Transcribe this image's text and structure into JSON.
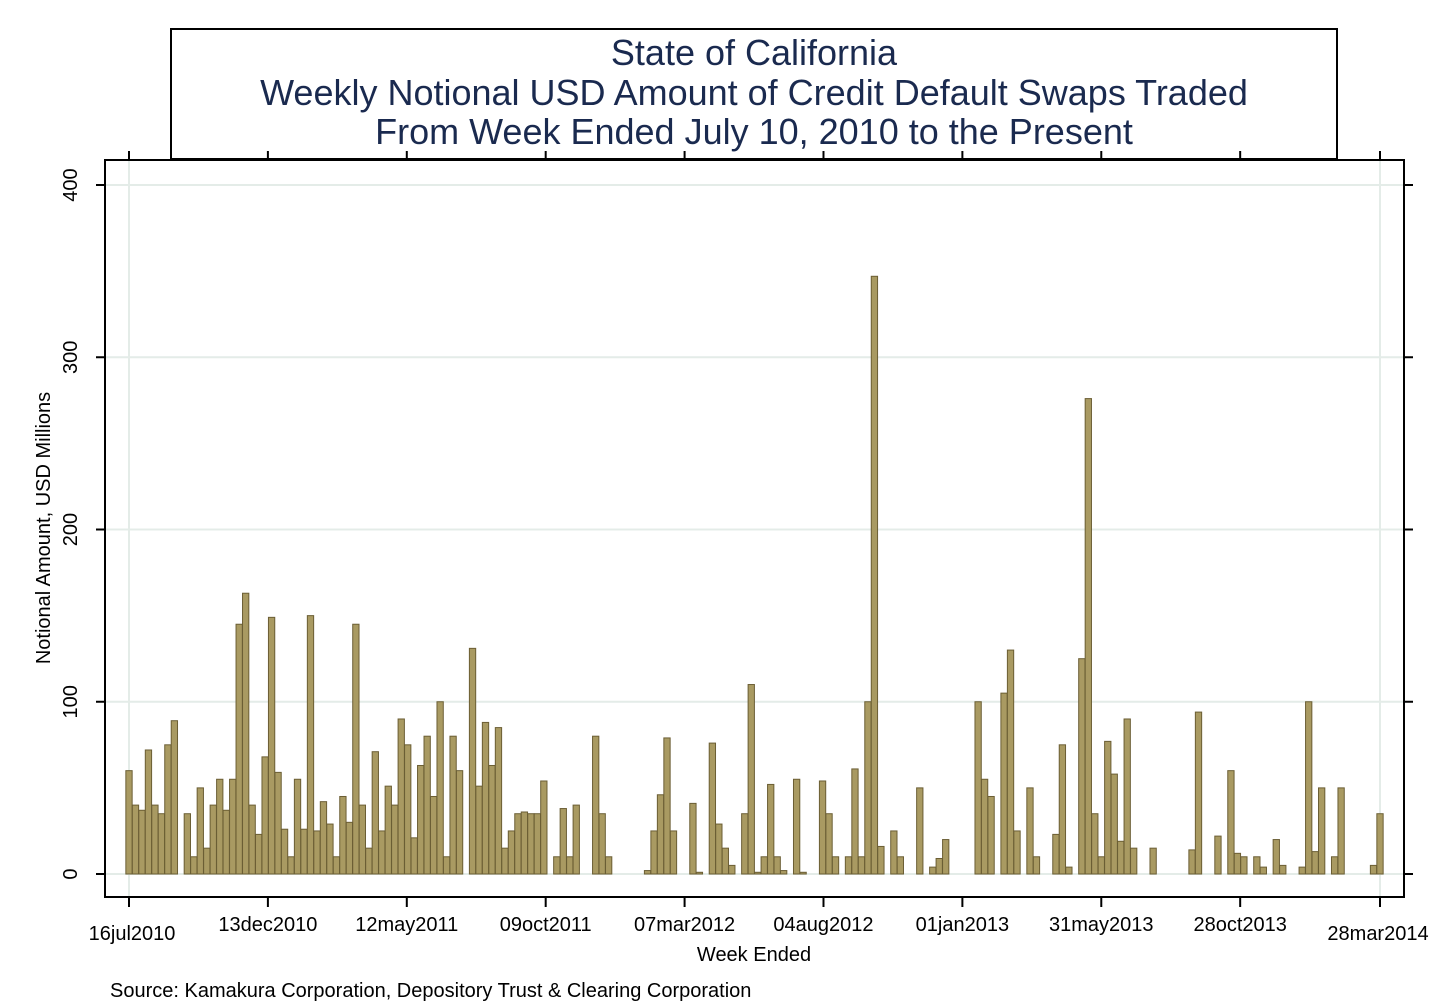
{
  "chart_data": {
    "type": "bar",
    "title_lines": [
      "State of California",
      "Weekly Notional USD Amount of Credit Default Swaps Traded",
      "From Week Ended July 10, 2010 to the Present"
    ],
    "xlabel": "Week Ended",
    "ylabel": "Notional Amount, USD Millions",
    "source": "Source: Kamakura Corporation, Depository Trust & Clearing Corporation",
    "ylim": [
      0,
      400
    ],
    "yticks": [
      0,
      100,
      200,
      300,
      400
    ],
    "xlim": [
      "2010-07-16",
      "2014-03-28"
    ],
    "xticks": [
      {
        "date": "2010-07-16",
        "label": "16jul2010"
      },
      {
        "date": "2010-12-13",
        "label": "13dec2010"
      },
      {
        "date": "2011-05-12",
        "label": "12may2011"
      },
      {
        "date": "2011-10-09",
        "label": "09oct2011"
      },
      {
        "date": "2012-03-07",
        "label": "07mar2012"
      },
      {
        "date": "2012-08-04",
        "label": "04aug2012"
      },
      {
        "date": "2013-01-01",
        "label": "01jan2013"
      },
      {
        "date": "2013-05-31",
        "label": "31may2013"
      },
      {
        "date": "2013-10-28",
        "label": "28oct2013"
      },
      {
        "date": "2014-03-28",
        "label": "28mar2014"
      }
    ],
    "grid": true,
    "colors": {
      "bar_fill": "#a99a62",
      "bar_stroke": "#6b5e34",
      "title": "#1a2a4f",
      "grid": "#e4ece8"
    },
    "series": [
      {
        "values": [
          [
            "2010-07-16",
            60
          ],
          [
            "2010-07-23",
            40
          ],
          [
            "2010-07-30",
            37
          ],
          [
            "2010-08-06",
            72
          ],
          [
            "2010-08-13",
            40
          ],
          [
            "2010-08-20",
            35
          ],
          [
            "2010-08-27",
            75
          ],
          [
            "2010-09-03",
            89
          ],
          [
            "2010-09-17",
            35
          ],
          [
            "2010-09-24",
            10
          ],
          [
            "2010-10-01",
            50
          ],
          [
            "2010-10-08",
            15
          ],
          [
            "2010-10-15",
            40
          ],
          [
            "2010-10-22",
            55
          ],
          [
            "2010-10-29",
            37
          ],
          [
            "2010-11-05",
            55
          ],
          [
            "2010-11-12",
            145
          ],
          [
            "2010-11-19",
            163
          ],
          [
            "2010-11-26",
            40
          ],
          [
            "2010-12-03",
            23
          ],
          [
            "2010-12-10",
            68
          ],
          [
            "2010-12-17",
            149
          ],
          [
            "2010-12-24",
            59
          ],
          [
            "2010-12-31",
            26
          ],
          [
            "2011-01-07",
            10
          ],
          [
            "2011-01-14",
            55
          ],
          [
            "2011-01-21",
            26
          ],
          [
            "2011-01-28",
            150
          ],
          [
            "2011-02-04",
            25
          ],
          [
            "2011-02-11",
            42
          ],
          [
            "2011-02-18",
            29
          ],
          [
            "2011-02-25",
            10
          ],
          [
            "2011-03-04",
            45
          ],
          [
            "2011-03-11",
            30
          ],
          [
            "2011-03-18",
            145
          ],
          [
            "2011-03-25",
            40
          ],
          [
            "2011-04-01",
            15
          ],
          [
            "2011-04-08",
            71
          ],
          [
            "2011-04-15",
            25
          ],
          [
            "2011-04-22",
            51
          ],
          [
            "2011-04-29",
            40
          ],
          [
            "2011-05-06",
            90
          ],
          [
            "2011-05-13",
            75
          ],
          [
            "2011-05-20",
            21
          ],
          [
            "2011-05-27",
            63
          ],
          [
            "2011-06-03",
            80
          ],
          [
            "2011-06-10",
            45
          ],
          [
            "2011-06-17",
            100
          ],
          [
            "2011-06-24",
            10
          ],
          [
            "2011-07-01",
            80
          ],
          [
            "2011-07-08",
            60
          ],
          [
            "2011-07-22",
            131
          ],
          [
            "2011-07-29",
            51
          ],
          [
            "2011-08-05",
            88
          ],
          [
            "2011-08-12",
            63
          ],
          [
            "2011-08-19",
            85
          ],
          [
            "2011-08-26",
            15
          ],
          [
            "2011-09-02",
            25
          ],
          [
            "2011-09-09",
            35
          ],
          [
            "2011-09-16",
            36
          ],
          [
            "2011-09-23",
            35
          ],
          [
            "2011-09-30",
            35
          ],
          [
            "2011-10-07",
            54
          ],
          [
            "2011-10-21",
            10
          ],
          [
            "2011-10-28",
            38
          ],
          [
            "2011-11-04",
            10
          ],
          [
            "2011-11-11",
            40
          ],
          [
            "2011-12-02",
            80
          ],
          [
            "2011-12-09",
            35
          ],
          [
            "2011-12-16",
            10
          ],
          [
            "2012-01-27",
            2
          ],
          [
            "2012-02-03",
            25
          ],
          [
            "2012-02-10",
            46
          ],
          [
            "2012-02-17",
            79
          ],
          [
            "2012-02-24",
            25
          ],
          [
            "2012-03-16",
            41
          ],
          [
            "2012-03-23",
            1
          ],
          [
            "2012-04-06",
            76
          ],
          [
            "2012-04-13",
            29
          ],
          [
            "2012-04-20",
            15
          ],
          [
            "2012-04-27",
            5
          ],
          [
            "2012-05-11",
            35
          ],
          [
            "2012-05-18",
            110
          ],
          [
            "2012-05-25",
            1
          ],
          [
            "2012-06-01",
            10
          ],
          [
            "2012-06-08",
            52
          ],
          [
            "2012-06-15",
            10
          ],
          [
            "2012-06-22",
            2
          ],
          [
            "2012-07-06",
            55
          ],
          [
            "2012-07-13",
            1
          ],
          [
            "2012-08-03",
            54
          ],
          [
            "2012-08-10",
            35
          ],
          [
            "2012-08-17",
            10
          ],
          [
            "2012-08-31",
            10
          ],
          [
            "2012-09-07",
            61
          ],
          [
            "2012-09-14",
            10
          ],
          [
            "2012-09-21",
            100
          ],
          [
            "2012-09-28",
            347
          ],
          [
            "2012-10-05",
            16
          ],
          [
            "2012-10-19",
            25
          ],
          [
            "2012-10-26",
            10
          ],
          [
            "2012-11-16",
            50
          ],
          [
            "2012-11-30",
            4
          ],
          [
            "2012-12-07",
            9
          ],
          [
            "2012-12-14",
            20
          ],
          [
            "2013-01-18",
            100
          ],
          [
            "2013-01-25",
            55
          ],
          [
            "2013-02-01",
            45
          ],
          [
            "2013-02-15",
            105
          ],
          [
            "2013-02-22",
            130
          ],
          [
            "2013-03-01",
            25
          ],
          [
            "2013-03-15",
            50
          ],
          [
            "2013-03-22",
            10
          ],
          [
            "2013-04-12",
            23
          ],
          [
            "2013-04-19",
            75
          ],
          [
            "2013-04-26",
            4
          ],
          [
            "2013-05-10",
            125
          ],
          [
            "2013-05-17",
            276
          ],
          [
            "2013-05-24",
            35
          ],
          [
            "2013-05-31",
            10
          ],
          [
            "2013-06-07",
            77
          ],
          [
            "2013-06-14",
            58
          ],
          [
            "2013-06-21",
            19
          ],
          [
            "2013-06-28",
            90
          ],
          [
            "2013-07-05",
            15
          ],
          [
            "2013-07-26",
            15
          ],
          [
            "2013-09-06",
            14
          ],
          [
            "2013-09-13",
            94
          ],
          [
            "2013-10-04",
            22
          ],
          [
            "2013-10-18",
            60
          ],
          [
            "2013-10-25",
            12
          ],
          [
            "2013-11-01",
            10
          ],
          [
            "2013-11-15",
            10
          ],
          [
            "2013-11-22",
            4
          ],
          [
            "2013-12-06",
            20
          ],
          [
            "2013-12-13",
            5
          ],
          [
            "2014-01-03",
            4
          ],
          [
            "2014-01-10",
            100
          ],
          [
            "2014-01-17",
            13
          ],
          [
            "2014-01-24",
            50
          ],
          [
            "2014-02-07",
            10
          ],
          [
            "2014-02-14",
            50
          ],
          [
            "2014-03-21",
            5
          ],
          [
            "2014-03-28",
            35
          ]
        ]
      }
    ]
  }
}
